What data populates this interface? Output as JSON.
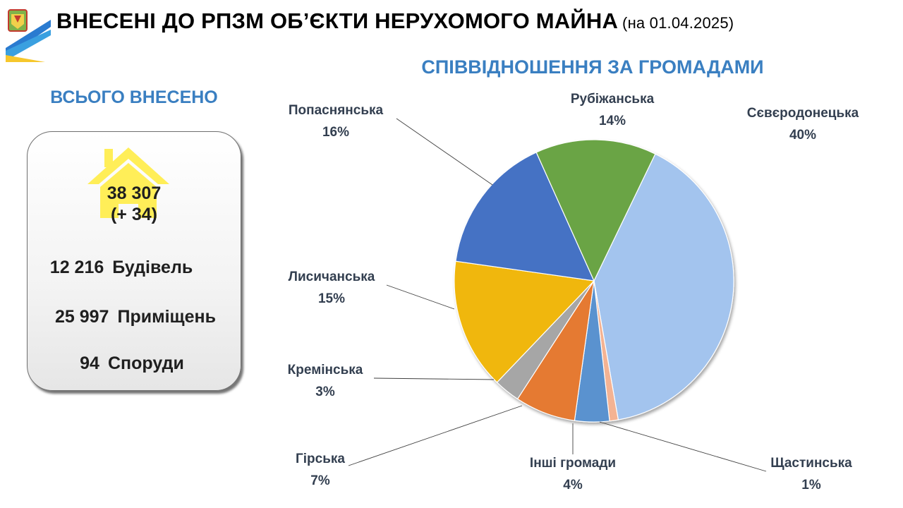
{
  "header": {
    "title": "ВНЕСЕНІ ДО РПЗМ ОБ’ЄКТИ НЕРУХОМОГО МАЙНА",
    "date": "(на 01.04.2025)"
  },
  "summary": {
    "heading": "ВСЬОГО ВНЕСЕНО",
    "total": "38 307",
    "change": "(+ 34)",
    "items": [
      {
        "value": "12 216",
        "label": "Будівель"
      },
      {
        "value": "25 997",
        "label": "Приміщень"
      },
      {
        "value": "94",
        "label": "Споруди"
      }
    ],
    "house_color": "#ffee58"
  },
  "chart_data": {
    "type": "pie",
    "title": "СПІВВІДНОШЕННЯ ЗА ГРОМАДАМИ",
    "slices": [
      {
        "name": "Сєвєродонецька",
        "value": 40,
        "label": "40%",
        "color": "#a3c4ee"
      },
      {
        "name": "Щастинська",
        "value": 1,
        "label": "1%",
        "color": "#f4b393"
      },
      {
        "name": "Інші громади",
        "value": 4,
        "label": "4%",
        "color": "#5a92cf"
      },
      {
        "name": "Гірська",
        "value": 7,
        "label": "7%",
        "color": "#e57a32"
      },
      {
        "name": "Кремінська",
        "value": 3,
        "label": "3%",
        "color": "#a6a6a6"
      },
      {
        "name": "Лисичанська",
        "value": 15,
        "label": "15%",
        "color": "#f0b70a"
      },
      {
        "name": "Попаснянська",
        "value": 16,
        "label": "16%",
        "color": "#4472c4"
      },
      {
        "name": "Рубіжанська",
        "value": 14,
        "label": "14%",
        "color": "#6aa445"
      }
    ]
  }
}
